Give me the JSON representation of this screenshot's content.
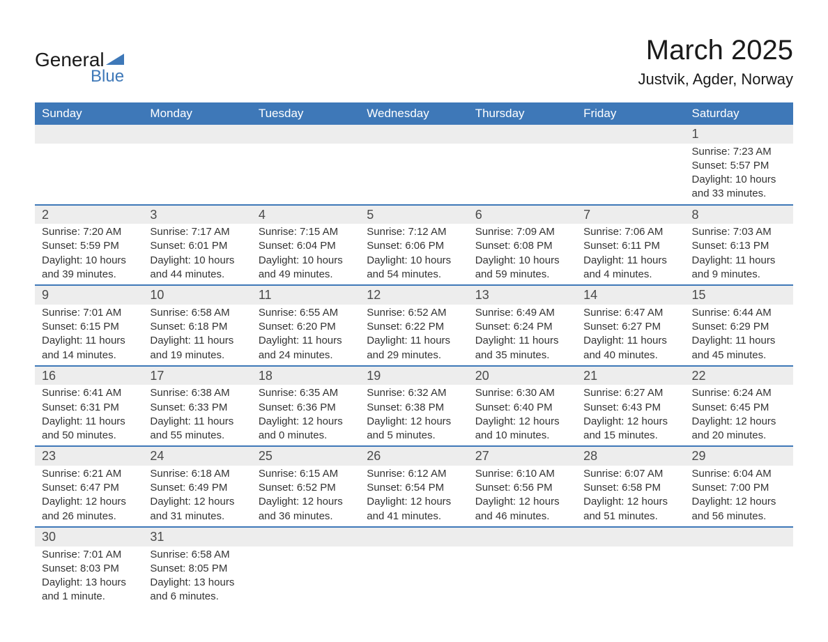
{
  "logo": {
    "main": "General",
    "sub": "Blue",
    "accent_color": "#3e78b8"
  },
  "title": "March 2025",
  "location": "Justvik, Agder, Norway",
  "colors": {
    "header_bg": "#3e78b8",
    "header_text": "#ffffff",
    "daynum_bg": "#ededed",
    "border": "#3e78b8",
    "body_text": "#333333"
  },
  "typography": {
    "title_fontsize": 40,
    "location_fontsize": 22,
    "header_fontsize": 17,
    "daynum_fontsize": 18,
    "body_fontsize": 15
  },
  "weekdays": [
    "Sunday",
    "Monday",
    "Tuesday",
    "Wednesday",
    "Thursday",
    "Friday",
    "Saturday"
  ],
  "weeks": [
    [
      null,
      null,
      null,
      null,
      null,
      null,
      {
        "n": "1",
        "sunrise": "7:23 AM",
        "sunset": "5:57 PM",
        "daylight": "10 hours and 33 minutes."
      }
    ],
    [
      {
        "n": "2",
        "sunrise": "7:20 AM",
        "sunset": "5:59 PM",
        "daylight": "10 hours and 39 minutes."
      },
      {
        "n": "3",
        "sunrise": "7:17 AM",
        "sunset": "6:01 PM",
        "daylight": "10 hours and 44 minutes."
      },
      {
        "n": "4",
        "sunrise": "7:15 AM",
        "sunset": "6:04 PM",
        "daylight": "10 hours and 49 minutes."
      },
      {
        "n": "5",
        "sunrise": "7:12 AM",
        "sunset": "6:06 PM",
        "daylight": "10 hours and 54 minutes."
      },
      {
        "n": "6",
        "sunrise": "7:09 AM",
        "sunset": "6:08 PM",
        "daylight": "10 hours and 59 minutes."
      },
      {
        "n": "7",
        "sunrise": "7:06 AM",
        "sunset": "6:11 PM",
        "daylight": "11 hours and 4 minutes."
      },
      {
        "n": "8",
        "sunrise": "7:03 AM",
        "sunset": "6:13 PM",
        "daylight": "11 hours and 9 minutes."
      }
    ],
    [
      {
        "n": "9",
        "sunrise": "7:01 AM",
        "sunset": "6:15 PM",
        "daylight": "11 hours and 14 minutes."
      },
      {
        "n": "10",
        "sunrise": "6:58 AM",
        "sunset": "6:18 PM",
        "daylight": "11 hours and 19 minutes."
      },
      {
        "n": "11",
        "sunrise": "6:55 AM",
        "sunset": "6:20 PM",
        "daylight": "11 hours and 24 minutes."
      },
      {
        "n": "12",
        "sunrise": "6:52 AM",
        "sunset": "6:22 PM",
        "daylight": "11 hours and 29 minutes."
      },
      {
        "n": "13",
        "sunrise": "6:49 AM",
        "sunset": "6:24 PM",
        "daylight": "11 hours and 35 minutes."
      },
      {
        "n": "14",
        "sunrise": "6:47 AM",
        "sunset": "6:27 PM",
        "daylight": "11 hours and 40 minutes."
      },
      {
        "n": "15",
        "sunrise": "6:44 AM",
        "sunset": "6:29 PM",
        "daylight": "11 hours and 45 minutes."
      }
    ],
    [
      {
        "n": "16",
        "sunrise": "6:41 AM",
        "sunset": "6:31 PM",
        "daylight": "11 hours and 50 minutes."
      },
      {
        "n": "17",
        "sunrise": "6:38 AM",
        "sunset": "6:33 PM",
        "daylight": "11 hours and 55 minutes."
      },
      {
        "n": "18",
        "sunrise": "6:35 AM",
        "sunset": "6:36 PM",
        "daylight": "12 hours and 0 minutes."
      },
      {
        "n": "19",
        "sunrise": "6:32 AM",
        "sunset": "6:38 PM",
        "daylight": "12 hours and 5 minutes."
      },
      {
        "n": "20",
        "sunrise": "6:30 AM",
        "sunset": "6:40 PM",
        "daylight": "12 hours and 10 minutes."
      },
      {
        "n": "21",
        "sunrise": "6:27 AM",
        "sunset": "6:43 PM",
        "daylight": "12 hours and 15 minutes."
      },
      {
        "n": "22",
        "sunrise": "6:24 AM",
        "sunset": "6:45 PM",
        "daylight": "12 hours and 20 minutes."
      }
    ],
    [
      {
        "n": "23",
        "sunrise": "6:21 AM",
        "sunset": "6:47 PM",
        "daylight": "12 hours and 26 minutes."
      },
      {
        "n": "24",
        "sunrise": "6:18 AM",
        "sunset": "6:49 PM",
        "daylight": "12 hours and 31 minutes."
      },
      {
        "n": "25",
        "sunrise": "6:15 AM",
        "sunset": "6:52 PM",
        "daylight": "12 hours and 36 minutes."
      },
      {
        "n": "26",
        "sunrise": "6:12 AM",
        "sunset": "6:54 PM",
        "daylight": "12 hours and 41 minutes."
      },
      {
        "n": "27",
        "sunrise": "6:10 AM",
        "sunset": "6:56 PM",
        "daylight": "12 hours and 46 minutes."
      },
      {
        "n": "28",
        "sunrise": "6:07 AM",
        "sunset": "6:58 PM",
        "daylight": "12 hours and 51 minutes."
      },
      {
        "n": "29",
        "sunrise": "6:04 AM",
        "sunset": "7:00 PM",
        "daylight": "12 hours and 56 minutes."
      }
    ],
    [
      {
        "n": "30",
        "sunrise": "7:01 AM",
        "sunset": "8:03 PM",
        "daylight": "13 hours and 1 minute."
      },
      {
        "n": "31",
        "sunrise": "6:58 AM",
        "sunset": "8:05 PM",
        "daylight": "13 hours and 6 minutes."
      },
      null,
      null,
      null,
      null,
      null
    ]
  ],
  "labels": {
    "sunrise": "Sunrise:",
    "sunset": "Sunset:",
    "daylight": "Daylight:"
  }
}
